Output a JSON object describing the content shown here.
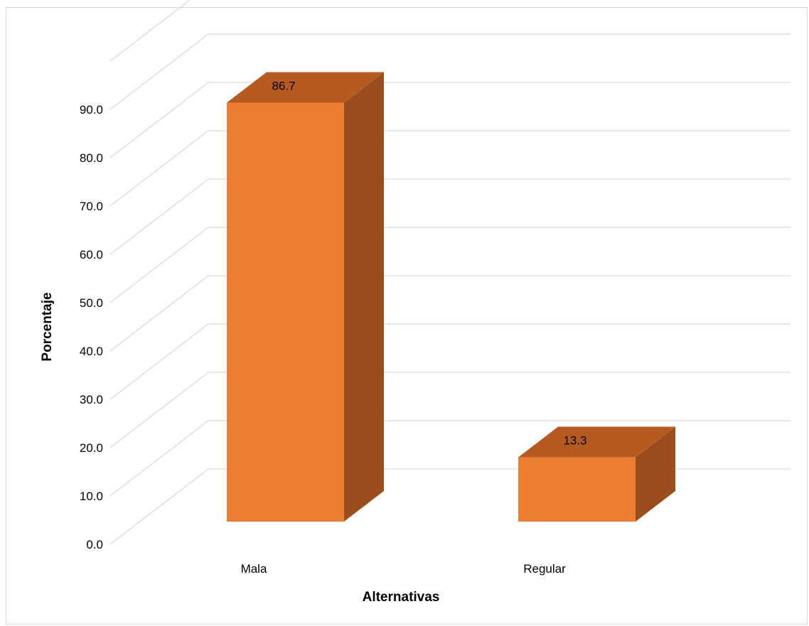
{
  "chart_data": {
    "type": "bar",
    "categories": [
      "Mala",
      "Regular"
    ],
    "values": [
      86.7,
      13.3
    ],
    "data_labels": [
      "86.7",
      "13.3"
    ],
    "title": "",
    "xlabel": "Alternativas",
    "ylabel": "Porcentaje",
    "ylim": [
      0,
      90
    ],
    "yticks": [
      "0.0",
      "10.0",
      "20.0",
      "30.0",
      "40.0",
      "50.0",
      "60.0",
      "70.0",
      "80.0",
      "90.0"
    ],
    "grid": true,
    "legend": "none",
    "style": "3d-column",
    "colors": {
      "bar_front": "#ED7D31",
      "bar_top": "#B55B22",
      "bar_side": "#9A4E1E",
      "gridline": "#d9d9d9"
    }
  }
}
